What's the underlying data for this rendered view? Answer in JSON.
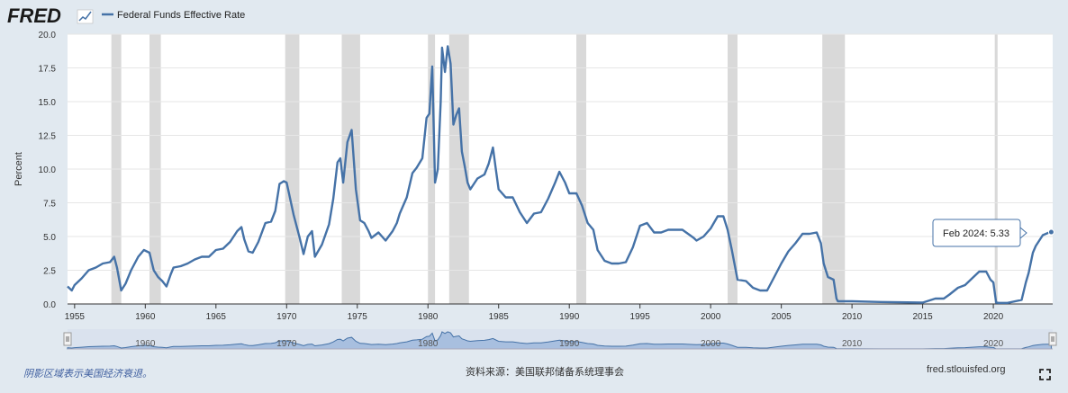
{
  "header": {
    "logo_text": "FRED",
    "series_label": "Federal Funds Effective Rate",
    "series_color": "#4572a7"
  },
  "tooltip": {
    "text": "Feb 2024: 5.33"
  },
  "footer": {
    "note": "阴影区域表示美国经济衰退。",
    "source": "资料来源：美国联邦储备系统理事会",
    "site": "fred.stlouisfed.org",
    "fullscreen_icon": "fullscreen-icon"
  },
  "colors": {
    "line": "#4572a7",
    "recession": "#d9d9d9",
    "background": "#e1e9f0",
    "navigator_fill": "#a8bfdf"
  },
  "chart_data": {
    "type": "line",
    "title": "",
    "xlabel": "",
    "ylabel": "Percent",
    "ylim": [
      0,
      20
    ],
    "xlim": [
      1954.5,
      2024.2
    ],
    "y_ticks": [
      "0.0",
      "2.5",
      "5.0",
      "7.5",
      "10.0",
      "12.5",
      "15.0",
      "17.5",
      "20.0"
    ],
    "x_ticks": [
      "1955",
      "1960",
      "1965",
      "1970",
      "1975",
      "1980",
      "1985",
      "1990",
      "1995",
      "2000",
      "2005",
      "2010",
      "2015",
      "2020"
    ],
    "navigator_ticks": [
      "1960",
      "1970",
      "1980",
      "1990",
      "2000",
      "2010",
      "2020"
    ],
    "grid": true,
    "recessions": [
      [
        1957.6,
        1958.3
      ],
      [
        1960.3,
        1961.1
      ],
      [
        1969.9,
        1970.9
      ],
      [
        1973.9,
        1975.2
      ],
      [
        1980.0,
        1980.5
      ],
      [
        1981.5,
        1982.9
      ],
      [
        1990.5,
        1991.2
      ],
      [
        2001.2,
        2001.9
      ],
      [
        2007.9,
        2009.5
      ],
      [
        2020.1,
        2020.3
      ]
    ],
    "series": [
      {
        "name": "Federal Funds Effective Rate",
        "x": [
          1954.5,
          1954.8,
          1955.0,
          1955.5,
          1956.0,
          1956.5,
          1957.0,
          1957.5,
          1957.8,
          1958.0,
          1958.3,
          1958.6,
          1959.0,
          1959.5,
          1959.9,
          1960.3,
          1960.6,
          1960.9,
          1961.2,
          1961.5,
          1961.8,
          1962.0,
          1962.5,
          1963.0,
          1963.5,
          1964.0,
          1964.5,
          1965.0,
          1965.5,
          1966.0,
          1966.5,
          1966.8,
          1967.0,
          1967.3,
          1967.6,
          1968.0,
          1968.5,
          1968.9,
          1969.2,
          1969.5,
          1969.8,
          1970.0,
          1970.5,
          1970.9,
          1971.2,
          1971.5,
          1971.8,
          1972.0,
          1972.5,
          1973.0,
          1973.3,
          1973.6,
          1973.8,
          1974.0,
          1974.3,
          1974.6,
          1974.9,
          1975.2,
          1975.5,
          1975.8,
          1976.0,
          1976.5,
          1977.0,
          1977.5,
          1977.8,
          1978.0,
          1978.5,
          1978.9,
          1979.2,
          1979.6,
          1979.9,
          1980.1,
          1980.3,
          1980.5,
          1980.7,
          1980.9,
          1981.0,
          1981.2,
          1981.4,
          1981.6,
          1981.8,
          1982.0,
          1982.2,
          1982.4,
          1982.6,
          1982.8,
          1983.0,
          1983.5,
          1984.0,
          1984.3,
          1984.6,
          1984.8,
          1985.0,
          1985.5,
          1986.0,
          1986.5,
          1987.0,
          1987.5,
          1988.0,
          1988.5,
          1989.0,
          1989.3,
          1989.7,
          1990.0,
          1990.5,
          1990.9,
          1991.3,
          1991.7,
          1992.0,
          1992.5,
          1993.0,
          1993.5,
          1994.0,
          1994.5,
          1995.0,
          1995.5,
          1996.0,
          1996.5,
          1997.0,
          1998.0,
          1998.8,
          1999.0,
          1999.5,
          2000.0,
          2000.5,
          2000.9,
          2001.2,
          2001.5,
          2001.9,
          2002.5,
          2003.0,
          2003.5,
          2004.0,
          2004.5,
          2005.0,
          2005.5,
          2006.0,
          2006.5,
          2007.0,
          2007.5,
          2007.8,
          2008.0,
          2008.3,
          2008.7,
          2008.9,
          2009.0,
          2010.0,
          2012.0,
          2015.0,
          2015.9,
          2016.5,
          2016.9,
          2017.5,
          2018.0,
          2018.5,
          2019.0,
          2019.5,
          2019.8,
          2020.0,
          2020.2,
          2020.4,
          2021.0,
          2022.0,
          2022.3,
          2022.5,
          2022.8,
          2023.0,
          2023.5,
          2024.0,
          2024.1
        ],
        "values": [
          1.3,
          1.0,
          1.4,
          1.9,
          2.5,
          2.7,
          3.0,
          3.1,
          3.5,
          2.7,
          1.0,
          1.5,
          2.5,
          3.5,
          4.0,
          3.8,
          2.5,
          2.0,
          1.7,
          1.3,
          2.2,
          2.7,
          2.8,
          3.0,
          3.3,
          3.5,
          3.5,
          4.0,
          4.1,
          4.6,
          5.4,
          5.7,
          4.8,
          3.9,
          3.8,
          4.6,
          6.0,
          6.1,
          6.9,
          8.9,
          9.1,
          9.0,
          6.6,
          5.0,
          3.7,
          5.0,
          5.4,
          3.5,
          4.4,
          5.9,
          7.8,
          10.5,
          10.8,
          9.0,
          12.0,
          12.9,
          8.5,
          6.2,
          6.0,
          5.4,
          4.9,
          5.3,
          4.7,
          5.4,
          6.0,
          6.7,
          7.9,
          9.7,
          10.1,
          10.8,
          13.8,
          14.1,
          17.6,
          9.0,
          10.0,
          15.0,
          19.0,
          17.2,
          19.1,
          17.8,
          13.3,
          14.0,
          14.5,
          11.3,
          10.2,
          9.0,
          8.5,
          9.3,
          9.6,
          10.4,
          11.6,
          10.0,
          8.5,
          7.9,
          7.9,
          6.8,
          6.0,
          6.7,
          6.8,
          7.8,
          9.0,
          9.8,
          9.0,
          8.2,
          8.2,
          7.3,
          6.0,
          5.5,
          4.0,
          3.2,
          3.0,
          3.0,
          3.1,
          4.2,
          5.8,
          6.0,
          5.3,
          5.3,
          5.5,
          5.5,
          4.9,
          4.7,
          5.0,
          5.6,
          6.5,
          6.5,
          5.5,
          4.0,
          1.8,
          1.7,
          1.2,
          1.0,
          1.0,
          2.0,
          3.0,
          3.9,
          4.5,
          5.2,
          5.2,
          5.3,
          4.5,
          3.0,
          2.0,
          1.8,
          0.4,
          0.2,
          0.2,
          0.15,
          0.1,
          0.4,
          0.4,
          0.7,
          1.2,
          1.4,
          1.9,
          2.4,
          2.4,
          1.8,
          1.6,
          0.1,
          0.08,
          0.08,
          0.3,
          1.6,
          2.3,
          3.8,
          4.3,
          5.1,
          5.33,
          5.33
        ]
      }
    ]
  }
}
